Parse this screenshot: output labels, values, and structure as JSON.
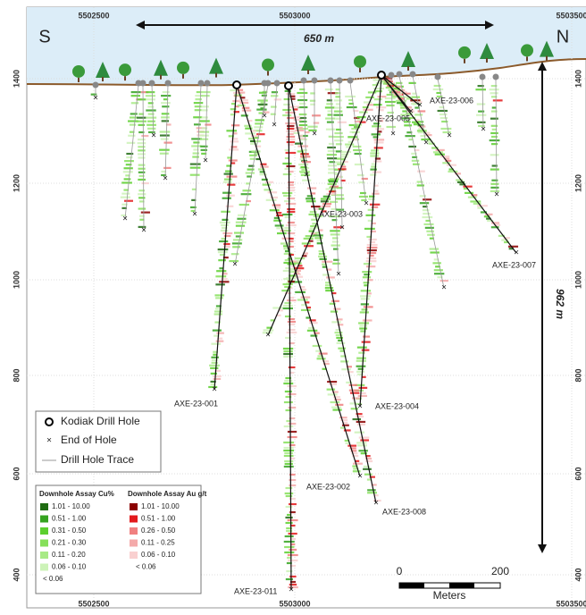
{
  "axis": {
    "top_ticks": [
      "5502500",
      "5503000",
      "5503500"
    ],
    "bottom_ticks": [
      "5502500",
      "5503000",
      "5503500"
    ],
    "left_ticks": [
      "1400",
      "1200",
      "1000",
      "800",
      "600",
      "400"
    ],
    "right_ticks": [
      "1400",
      "1200",
      "1000",
      "800",
      "600",
      "400"
    ]
  },
  "directions": {
    "south": "S",
    "north": "N"
  },
  "dimensions": {
    "width": "650 m",
    "depth": "962 m"
  },
  "holes": [
    "AXE-23-001",
    "AXE-23-002",
    "AXE-23-003",
    "AXE-23-004",
    "AXE-23-005",
    "AXE-23-006",
    "AXE-23-007",
    "AXE-23-008",
    "AXE-23-011"
  ],
  "legend": {
    "items": [
      "Kodiak Drill Hole",
      "End of Hole",
      "Drill Hole Trace"
    ]
  },
  "assay_legend": {
    "cu_title": "Downhole Assay Cu%",
    "cu_classes": [
      "1.01 - 10.00",
      "0.51 - 1.00",
      "0.31 - 0.50",
      "0.21 - 0.30",
      "0.11 - 0.20",
      "0.06 - 0.10",
      "< 0.06"
    ],
    "au_title": "Downhole Assay Au g/t",
    "au_classes": [
      "1.01 - 10.00",
      "0.51 - 1.00",
      "0.26 - 0.50",
      "0.11 - 0.25",
      "0.06 - 0.10",
      "< 0.06"
    ]
  },
  "scale_bar": {
    "ticks": [
      "0",
      "200"
    ],
    "unit": "Meters"
  }
}
